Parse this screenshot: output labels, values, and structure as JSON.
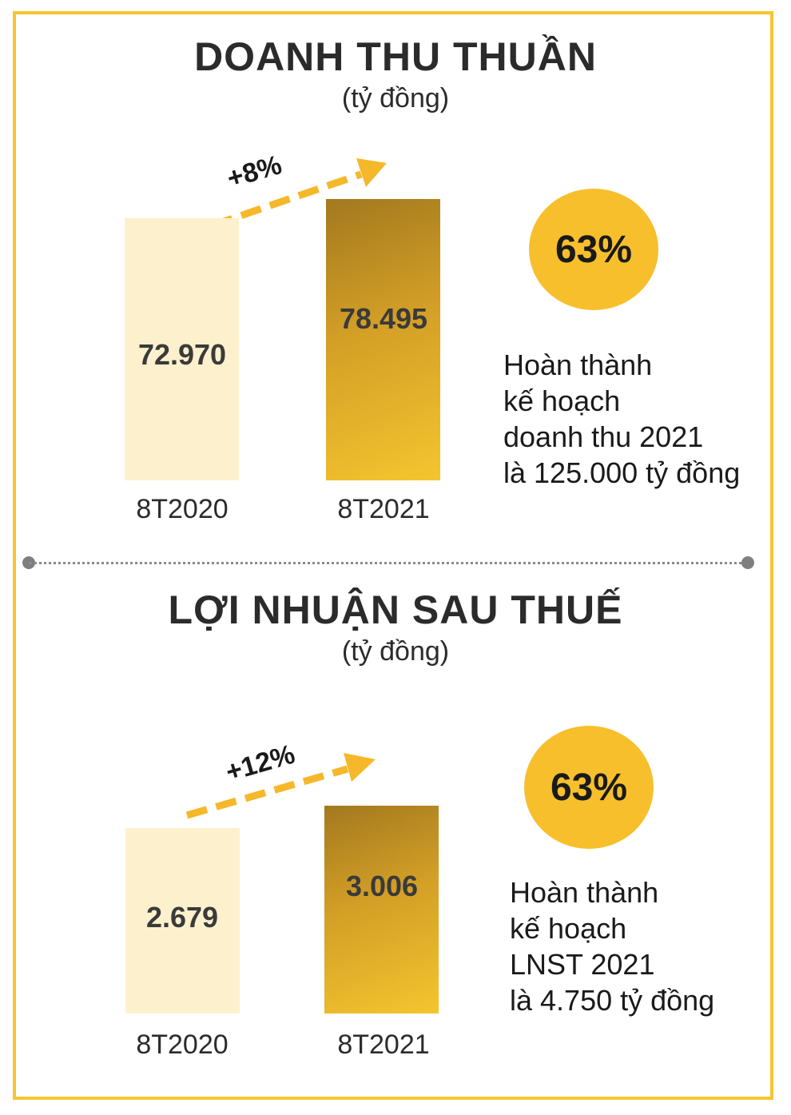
{
  "chart_data": [
    {
      "type": "bar",
      "title": "DOANH THU THUẦN",
      "subtitle": "(tỷ đồng)",
      "categories": [
        "8T2020",
        "8T2021"
      ],
      "values": [
        72970,
        78495
      ],
      "value_labels": [
        "72.970",
        "78.495"
      ],
      "growth_label": "+8%",
      "completion": {
        "percent_label": "63%",
        "lines": [
          "Hoàn thành",
          "kế hoạch",
          "doanh thu 2021",
          "là 125.000 tỷ đồng"
        ]
      }
    },
    {
      "type": "bar",
      "title": "LỢI NHUẬN SAU THUẾ",
      "subtitle": "(tỷ đồng)",
      "categories": [
        "8T2020",
        "8T2021"
      ],
      "values": [
        2679,
        3006
      ],
      "value_labels": [
        "2.679",
        "3.006"
      ],
      "growth_label": "+12%",
      "completion": {
        "percent_label": "63%",
        "lines": [
          "Hoàn thành",
          "kế hoạch",
          "LNST 2021",
          "là 4.750 tỷ đồng"
        ]
      }
    }
  ],
  "colors": {
    "frame": "#f7c531",
    "bar_previous": "#fdf1cd",
    "bar_current": "#d39f26",
    "circle": "#f7bf2c",
    "arrow": "#f5b82a",
    "divider": "#8a8a8a"
  }
}
